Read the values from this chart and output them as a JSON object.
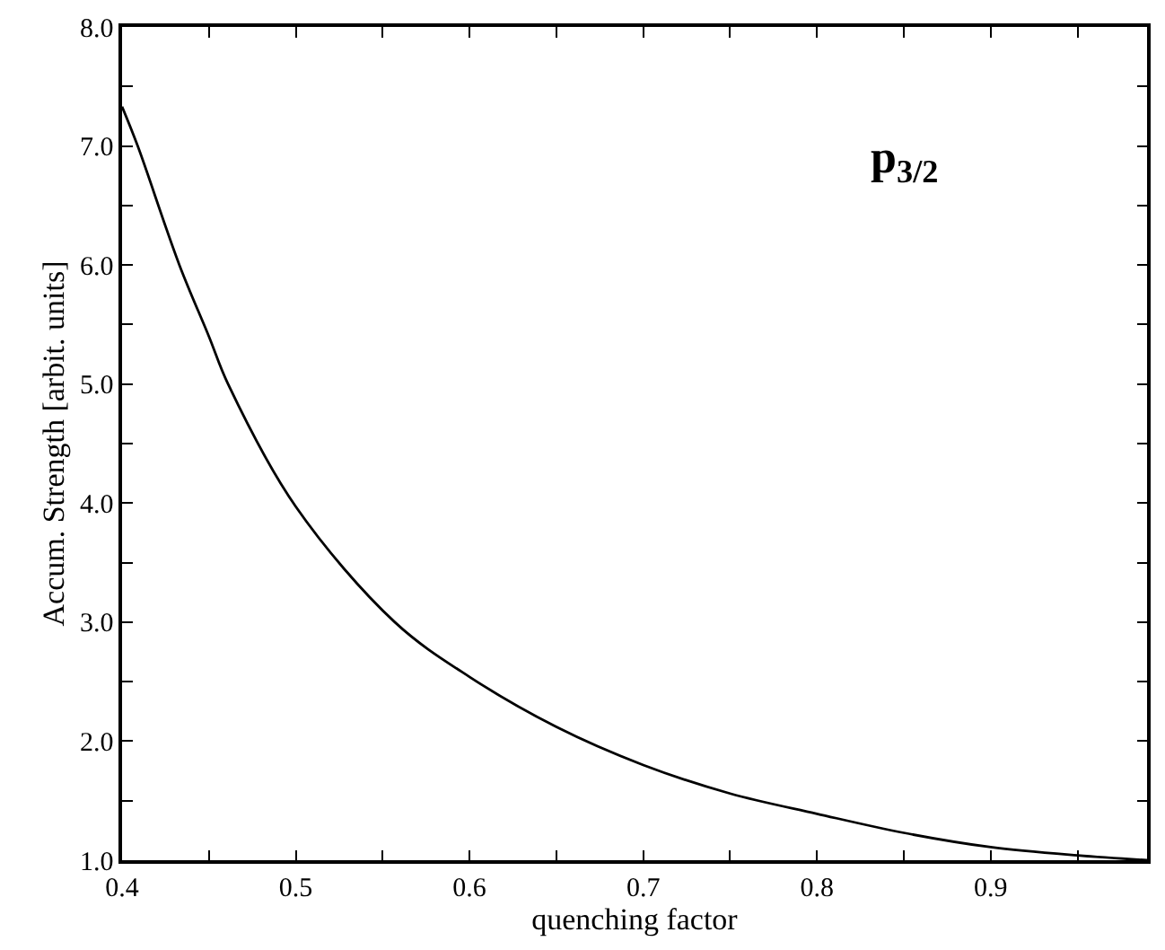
{
  "chart_data": {
    "type": "line",
    "xlabel": "quenching factor",
    "ylabel": "Accum. Strength [arbit. units]",
    "annotations": [
      "p$_{3/2}$"
    ],
    "series": [
      {
        "color": "#000000",
        "x": [
          0.4,
          0.409,
          0.433,
          0.45,
          0.461,
          0.5,
          0.557,
          0.6,
          0.65,
          0.7,
          0.75,
          0.8,
          0.85,
          0.9,
          0.95,
          0.99
        ],
        "values": [
          7.33,
          7.0,
          6.0,
          5.4,
          5.0,
          3.97,
          3.0,
          2.54,
          2.12,
          1.8,
          1.56,
          1.39,
          1.23,
          1.11,
          1.04,
          1.0
        ]
      }
    ],
    "xlim": [
      0.4,
      0.99
    ],
    "xticks": [
      {
        "value": 0.4,
        "label": "0.4"
      },
      {
        "value": 0.45,
        "label": null
      },
      {
        "value": 0.5,
        "label": "0.5"
      },
      {
        "value": 0.55,
        "label": null
      },
      {
        "value": 0.6,
        "label": "0.6"
      },
      {
        "value": 0.65,
        "label": null
      },
      {
        "value": 0.7,
        "label": "0.7"
      },
      {
        "value": 0.75,
        "label": null
      },
      {
        "value": 0.8,
        "label": "0.8"
      },
      {
        "value": 0.85,
        "label": null
      },
      {
        "value": 0.9,
        "label": "0.9"
      },
      {
        "value": 0.95,
        "label": null
      }
    ],
    "ylim": [
      1.0,
      8.0
    ],
    "yticks": [
      {
        "value": 1.0,
        "label": "1.0"
      },
      {
        "value": 1.5,
        "label": null
      },
      {
        "value": 2.0,
        "label": "2.0"
      },
      {
        "value": 2.5,
        "label": null
      },
      {
        "value": 3.0,
        "label": "3.0"
      },
      {
        "value": 3.5,
        "label": null
      },
      {
        "value": 4.0,
        "label": "4.0"
      },
      {
        "value": 4.5,
        "label": null
      },
      {
        "value": 5.0,
        "label": "5.0"
      },
      {
        "value": 5.5,
        "label": null
      },
      {
        "value": 6.0,
        "label": "6.0"
      },
      {
        "value": 6.5,
        "label": null
      },
      {
        "value": 7.0,
        "label": "7.0"
      },
      {
        "value": 7.5,
        "label": null
      },
      {
        "value": 8.0,
        "label": "8.0"
      }
    ],
    "marker": "none",
    "line_style": "solid"
  }
}
